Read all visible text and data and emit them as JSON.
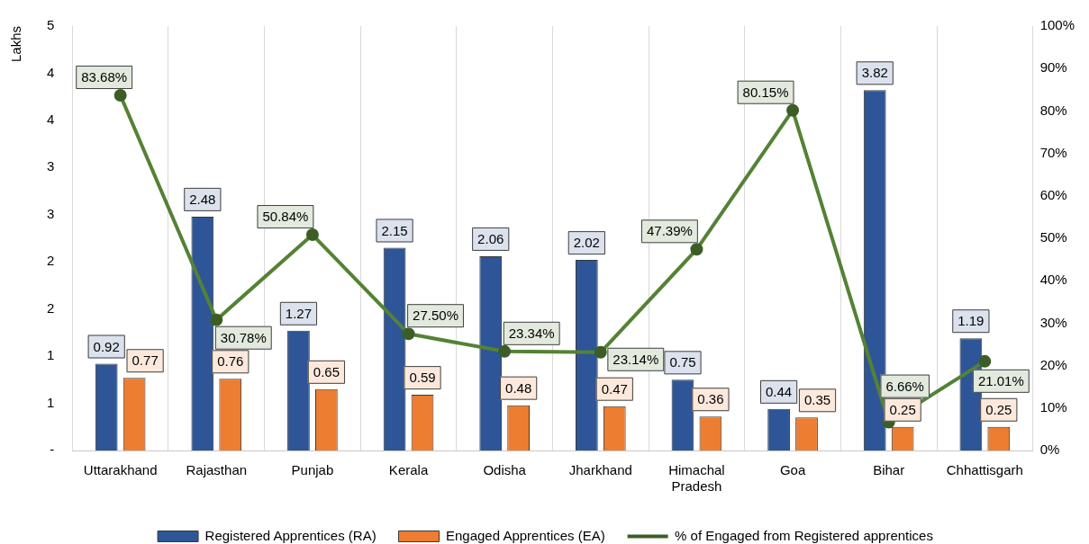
{
  "chart_data": {
    "type": "bar",
    "categories": [
      "Uttarakhand",
      "Rajasthan",
      "Punjab",
      "Kerala",
      "Odisha",
      "Jharkhand",
      "Himachal Pradesh",
      "Goa",
      "Bihar",
      "Chhattisgarh"
    ],
    "ylabel": "Lakhs",
    "ylim": [
      0,
      4.5
    ],
    "yticks": [
      {
        "value": 0,
        "label": "-"
      },
      {
        "value": 0.5,
        "label": "1"
      },
      {
        "value": 1,
        "label": "1"
      },
      {
        "value": 1.5,
        "label": "2"
      },
      {
        "value": 2,
        "label": "2"
      },
      {
        "value": 2.5,
        "label": "3"
      },
      {
        "value": 3,
        "label": "3"
      },
      {
        "value": 3.5,
        "label": "4"
      },
      {
        "value": 4,
        "label": "4"
      },
      {
        "value": 4.5,
        "label": "5"
      }
    ],
    "y2lim": [
      0,
      100
    ],
    "y2ticks": [
      {
        "value": 0,
        "label": "0%"
      },
      {
        "value": 10,
        "label": "10%"
      },
      {
        "value": 20,
        "label": "20%"
      },
      {
        "value": 30,
        "label": "30%"
      },
      {
        "value": 40,
        "label": "40%"
      },
      {
        "value": 50,
        "label": "50%"
      },
      {
        "value": 60,
        "label": "60%"
      },
      {
        "value": 70,
        "label": "70%"
      },
      {
        "value": 80,
        "label": "80%"
      },
      {
        "value": 90,
        "label": "90%"
      },
      {
        "value": 100,
        "label": "100%"
      }
    ],
    "series": [
      {
        "name": "Registered Apprentices (RA)",
        "color": "#2e5597",
        "values": [
          0.92,
          2.48,
          1.27,
          2.15,
          2.06,
          2.02,
          0.75,
          0.44,
          3.82,
          1.19
        ],
        "value_labels": [
          "0.92",
          "2.48",
          "1.27",
          "2.15",
          "2.06",
          "2.02",
          "0.75",
          "0.44",
          "3.82",
          "1.19"
        ]
      },
      {
        "name": "Engaged Apprentices (EA)",
        "color": "#ed7d31",
        "values": [
          0.77,
          0.76,
          0.65,
          0.59,
          0.48,
          0.47,
          0.36,
          0.35,
          0.25,
          0.25
        ],
        "value_labels": [
          "0.77",
          "0.76",
          "0.65",
          "0.59",
          "0.48",
          "0.47",
          "0.36",
          "0.35",
          "0.25",
          "0.25"
        ]
      },
      {
        "name": "% of Engaged from Registered apprentices",
        "type": "line",
        "axis": "y2",
        "color": "#548235",
        "values": [
          83.68,
          30.78,
          50.84,
          27.5,
          23.34,
          23.14,
          47.39,
          80.15,
          6.66,
          21.01
        ],
        "value_labels": [
          "83.68%",
          "30.78%",
          "50.84%",
          "27.50%",
          "23.34%",
          "23.14%",
          "47.39%",
          "80.15%",
          "6.66%",
          "21.01%"
        ]
      }
    ],
    "grid": "x",
    "legend": "bottom",
    "marker": "circle",
    "line_style": "solid"
  }
}
